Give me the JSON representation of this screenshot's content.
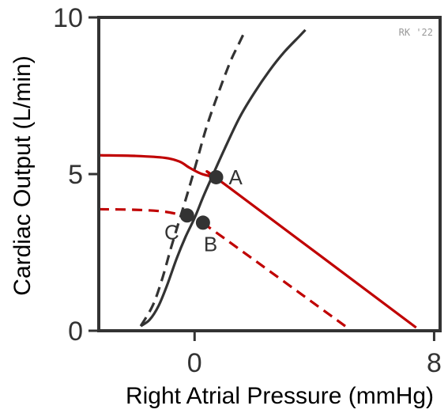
{
  "chart_data": {
    "type": "line",
    "xlabel": "Right Atrial Pressure (mmHg)",
    "ylabel": "Cardiac Output (L/min)",
    "xlim": [
      -3.2,
      8.2
    ],
    "ylim": [
      0,
      10
    ],
    "x_ticks": [
      0,
      8
    ],
    "y_ticks": [
      0,
      5,
      10
    ],
    "grid": false,
    "credit": "RK '22",
    "colors": {
      "cardiac": "#333333",
      "venous": "#c00000",
      "axis": "#333333"
    },
    "series": [
      {
        "kind": "cardiac-function",
        "style": "solid",
        "color": "#333333",
        "points": [
          [
            -1.8,
            0.15
          ],
          [
            -1.5,
            0.35
          ],
          [
            -1.2,
            0.8
          ],
          [
            -0.9,
            1.5
          ],
          [
            -0.6,
            2.3
          ],
          [
            -0.3,
            3.0
          ],
          [
            0.0,
            3.6
          ],
          [
            0.3,
            4.3
          ],
          [
            0.6,
            4.95
          ],
          [
            1.0,
            5.8
          ],
          [
            1.5,
            6.8
          ],
          [
            2.0,
            7.6
          ],
          [
            2.5,
            8.3
          ],
          [
            3.0,
            8.9
          ],
          [
            3.5,
            9.4
          ],
          [
            3.7,
            9.6
          ]
        ]
      },
      {
        "kind": "cardiac-function",
        "style": "dashed",
        "color": "#333333",
        "points": [
          [
            -1.8,
            0.15
          ],
          [
            -1.4,
            0.8
          ],
          [
            -1.1,
            1.6
          ],
          [
            -0.8,
            2.6
          ],
          [
            -0.5,
            3.55
          ],
          [
            -0.2,
            4.5
          ],
          [
            0.1,
            5.5
          ],
          [
            0.4,
            6.5
          ],
          [
            0.8,
            7.6
          ],
          [
            1.2,
            8.6
          ],
          [
            1.5,
            9.2
          ],
          [
            1.7,
            9.6
          ]
        ]
      },
      {
        "kind": "venous-return",
        "style": "solid",
        "color": "#c00000",
        "points": [
          [
            -3.2,
            5.6
          ],
          [
            -2.0,
            5.58
          ],
          [
            -1.0,
            5.52
          ],
          [
            -0.5,
            5.4
          ],
          [
            -0.2,
            5.22
          ],
          [
            0.2,
            5.02
          ],
          [
            0.6,
            4.9
          ],
          [
            1.0,
            4.68
          ],
          [
            7.4,
            0.1
          ]
        ]
      },
      {
        "kind": "venous-return",
        "style": "dashed",
        "color": "#c00000",
        "points": [
          [
            -3.2,
            3.88
          ],
          [
            -2.0,
            3.86
          ],
          [
            -1.2,
            3.82
          ],
          [
            -0.7,
            3.75
          ],
          [
            -0.4,
            3.66
          ],
          [
            0.0,
            3.5
          ],
          [
            0.3,
            3.38
          ],
          [
            0.6,
            3.22
          ],
          [
            5.1,
            0.1
          ]
        ]
      }
    ],
    "annotations": [
      {
        "label": "A",
        "x": 0.72,
        "y": 4.9,
        "label_side": "right"
      },
      {
        "label": "B",
        "x": 0.28,
        "y": 3.45,
        "label_side": "below-right"
      },
      {
        "label": "C",
        "x": -0.25,
        "y": 3.68,
        "label_side": "below-left"
      }
    ]
  }
}
